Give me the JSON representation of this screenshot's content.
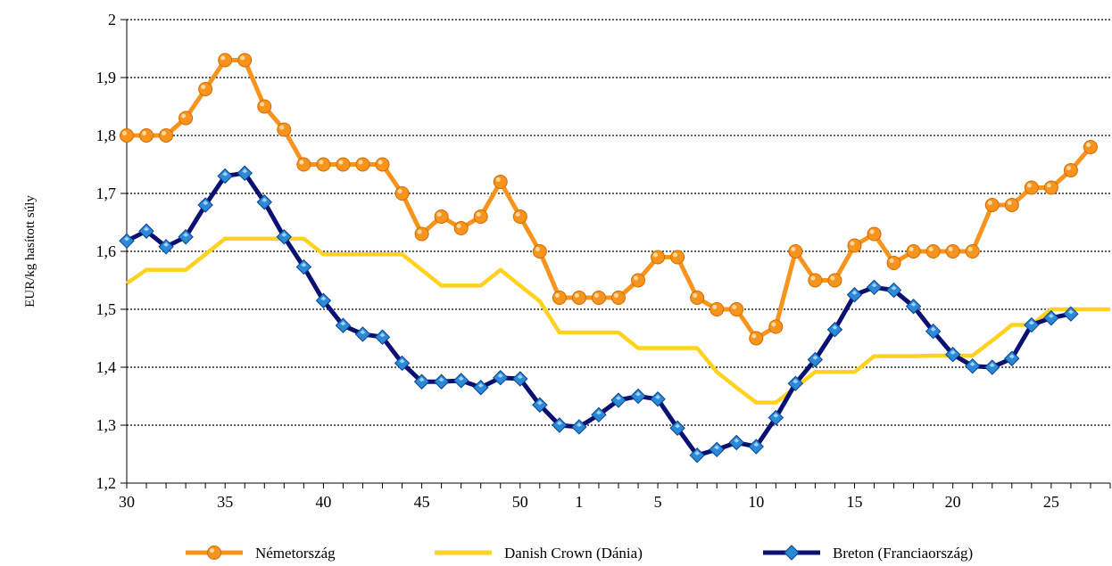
{
  "chart_data": {
    "type": "line",
    "title": "",
    "xlabel": "",
    "ylabel": "EUR/kg hasított súly",
    "ylim": [
      1.2,
      2.0
    ],
    "yticks": [
      "1,2",
      "1,3",
      "1,4",
      "1,5",
      "1,6",
      "1,7",
      "1,8",
      "1,9",
      "2"
    ],
    "x_tick_labels": [
      {
        "index": 0,
        "label": "30"
      },
      {
        "index": 5,
        "label": "35"
      },
      {
        "index": 10,
        "label": "40"
      },
      {
        "index": 15,
        "label": "45"
      },
      {
        "index": 20,
        "label": "50"
      },
      {
        "index": 23,
        "label": "1"
      },
      {
        "index": 27,
        "label": "5"
      },
      {
        "index": 32,
        "label": "10"
      },
      {
        "index": 37,
        "label": "15"
      },
      {
        "index": 42,
        "label": "20"
      },
      {
        "index": 47,
        "label": "25"
      }
    ],
    "grid": "horizontal-dotted",
    "legend": "bottom",
    "series": [
      {
        "name": "Németország",
        "color": "#f7941d",
        "marker": "circle",
        "values": [
          1.8,
          1.8,
          1.8,
          1.83,
          1.88,
          1.93,
          1.93,
          1.85,
          1.81,
          1.75,
          1.75,
          1.75,
          1.75,
          1.75,
          1.7,
          1.63,
          1.66,
          1.64,
          1.66,
          1.72,
          1.66,
          1.6,
          1.52,
          1.52,
          1.52,
          1.52,
          1.55,
          1.59,
          1.59,
          1.52,
          1.5,
          1.5,
          1.45,
          1.47,
          1.6,
          1.55,
          1.55,
          1.61,
          1.63,
          1.58,
          1.6,
          1.6,
          1.6,
          1.6,
          1.68,
          1.68,
          1.71,
          1.71,
          1.74,
          1.78
        ]
      },
      {
        "name": "Danish Crown (Dánia)",
        "color": "#ffd21f",
        "marker": "none",
        "values": [
          1.545,
          1.568,
          1.568,
          1.568,
          1.595,
          1.622,
          1.622,
          1.622,
          1.622,
          1.622,
          1.595,
          1.595,
          1.595,
          1.595,
          1.595,
          1.568,
          1.541,
          1.541,
          1.541,
          1.568,
          1.541,
          1.514,
          1.46,
          1.46,
          1.46,
          1.46,
          1.433,
          1.433,
          1.433,
          1.433,
          1.392,
          1.365,
          1.339,
          1.339,
          1.365,
          1.392,
          1.392,
          1.392,
          1.419,
          1.419,
          1.419,
          1.42,
          1.42,
          1.42,
          1.446,
          1.473,
          1.473,
          1.5,
          1.5,
          1.5,
          1.5
        ]
      },
      {
        "name": "Breton (Franciaország)",
        "color": "#0a1172",
        "marker": "diamond",
        "values": [
          1.618,
          1.635,
          1.608,
          1.625,
          1.68,
          1.73,
          1.735,
          1.685,
          1.625,
          1.573,
          1.515,
          1.472,
          1.457,
          1.452,
          1.407,
          1.375,
          1.375,
          1.377,
          1.365,
          1.382,
          1.38,
          1.335,
          1.3,
          1.297,
          1.318,
          1.343,
          1.35,
          1.345,
          1.295,
          1.248,
          1.258,
          1.27,
          1.263,
          1.313,
          1.372,
          1.413,
          1.465,
          1.525,
          1.538,
          1.533,
          1.505,
          1.462,
          1.422,
          1.402,
          1.4,
          1.415,
          1.473,
          1.485,
          1.492
        ]
      }
    ]
  }
}
